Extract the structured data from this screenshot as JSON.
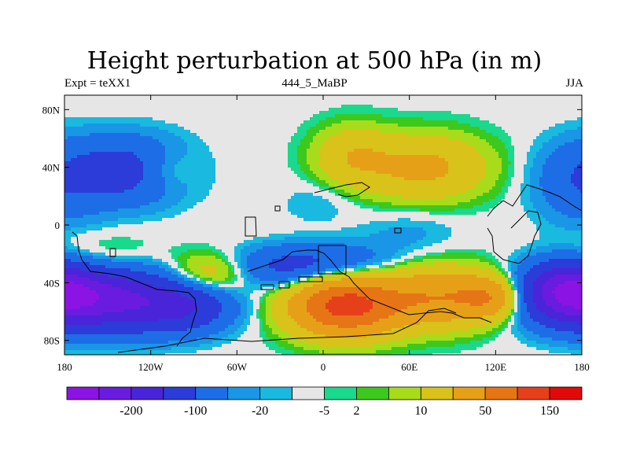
{
  "title": "Height perturbation at 500 hPa (in m)",
  "subtitle_left": "Expt = teXX1",
  "subtitle_center": "444_5_MaBP",
  "subtitle_right": "JJA",
  "x_ticks": [
    "180",
    "120W",
    "60W",
    "0",
    "60E",
    "120E",
    "180"
  ],
  "y_ticks": [
    "80N",
    "40N",
    "0",
    "40S",
    "80S"
  ],
  "colorbar": {
    "colors": [
      "#8b13e3",
      "#6a1be0",
      "#4a24d8",
      "#2b3cd8",
      "#1d6ee6",
      "#1a96e6",
      "#19b9e0",
      "#e6e6e6",
      "#1ad88c",
      "#3dc81e",
      "#a8dc1a",
      "#d9c21a",
      "#e6a018",
      "#e67516",
      "#e6401a",
      "#e00a0a"
    ],
    "labels": [
      "-200",
      "-100",
      "-20",
      "-5",
      "2",
      "10",
      "50",
      "150"
    ],
    "label_after_box": [
      1,
      3,
      5,
      7,
      8,
      10,
      12,
      14
    ]
  },
  "fields": [
    {
      "lon": -135,
      "lat": 38,
      "sx": 28,
      "sy": 16,
      "a": -70
    },
    {
      "lon": -150,
      "lat": -52,
      "sx": 40,
      "sy": 15,
      "a": -160
    },
    {
      "lon": -95,
      "lat": -57,
      "sx": 22,
      "sy": 12,
      "a": -60
    },
    {
      "lon": 170,
      "lat": -45,
      "sx": 22,
      "sy": 14,
      "a": -150
    },
    {
      "lon": 178,
      "lat": 30,
      "sx": 22,
      "sy": 20,
      "a": -40
    },
    {
      "lon": -30,
      "lat": -30,
      "sx": 25,
      "sy": 10,
      "a": -50
    },
    {
      "lon": 10,
      "lat": -25,
      "sx": 30,
      "sy": 9,
      "a": -40
    },
    {
      "lon": -5,
      "lat": 15,
      "sx": 18,
      "sy": 10,
      "a": -10
    },
    {
      "lon": 15,
      "lat": -56,
      "sx": 26,
      "sy": 14,
      "a": 170
    },
    {
      "lon": 80,
      "lat": -50,
      "sx": 28,
      "sy": 14,
      "a": 90
    },
    {
      "lon": 118,
      "lat": -50,
      "sx": 16,
      "sy": 10,
      "a": 80
    },
    {
      "lon": -80,
      "lat": -35,
      "sx": 22,
      "sy": 10,
      "a": 50
    },
    {
      "lon": -110,
      "lat": 38,
      "sx": 15,
      "sy": 10,
      "a": 30
    },
    {
      "lon": 70,
      "lat": 40,
      "sx": 30,
      "sy": 15,
      "a": 60
    },
    {
      "lon": 20,
      "lat": 48,
      "sx": 18,
      "sy": 14,
      "a": 40
    },
    {
      "lon": -160,
      "lat": -22,
      "sx": 30,
      "sy": 10,
      "a": 20
    },
    {
      "lon": -40,
      "lat": -5,
      "sx": 45,
      "sy": 12,
      "a": 0
    },
    {
      "lon": 60,
      "lat": -5,
      "sx": 25,
      "sy": 10,
      "a": -12
    }
  ]
}
